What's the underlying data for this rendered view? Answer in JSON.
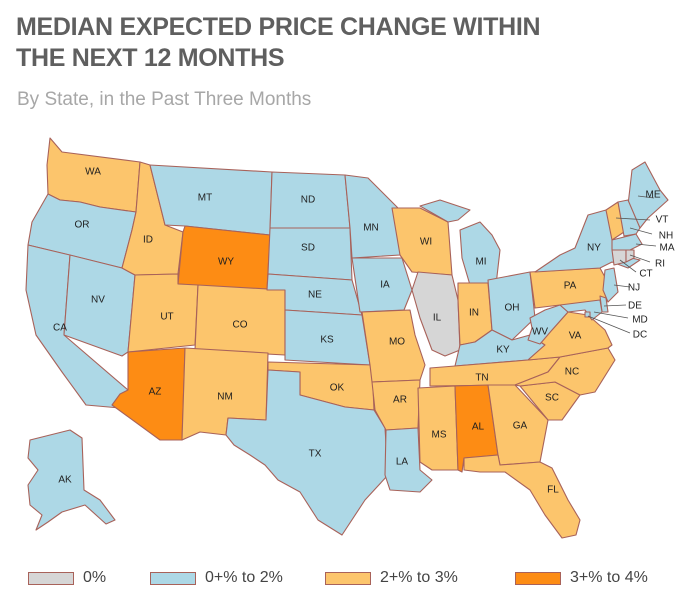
{
  "header": {
    "title_line1": "MEDIAN EXPECTED PRICE CHANGE WITHIN",
    "title_line2": "THE NEXT 12 MONTHS",
    "subtitle": "By State, in the Past Three Months"
  },
  "colors": {
    "zero": "#d6d6d6",
    "low": "#add8e6",
    "mid": "#fcc56c",
    "high": "#fd8c14"
  },
  "legend": [
    {
      "label": "0%",
      "cat": "zero"
    },
    {
      "label": "0+% to 2%",
      "cat": "low"
    },
    {
      "label": "2+% to 3%",
      "cat": "mid"
    },
    {
      "label": "3+% to 4%",
      "cat": "high"
    }
  ],
  "states": {
    "WA": "mid",
    "OR": "low",
    "CA": "low",
    "NV": "low",
    "ID": "mid",
    "MT": "low",
    "WY": "high",
    "UT": "mid",
    "CO": "mid",
    "AZ": "high",
    "NM": "mid",
    "ND": "low",
    "SD": "low",
    "NE": "low",
    "KS": "low",
    "OK": "mid",
    "TX": "low",
    "MN": "low",
    "IA": "low",
    "MO": "mid",
    "AR": "mid",
    "LA": "low",
    "WI": "mid",
    "IL": "zero",
    "MI": "low",
    "IN": "mid",
    "OH": "low",
    "KY": "low",
    "TN": "mid",
    "MS": "mid",
    "AL": "high",
    "GA": "mid",
    "FL": "mid",
    "SC": "mid",
    "NC": "mid",
    "VA": "mid",
    "WV": "low",
    "PA": "mid",
    "NY": "low",
    "ME": "low",
    "VT": "mid",
    "NH": "low",
    "MA": "low",
    "RI": "zero",
    "CT": "zero",
    "NJ": "low",
    "DE": "low",
    "MD": "low",
    "DC": "low",
    "AK": "low"
  }
}
